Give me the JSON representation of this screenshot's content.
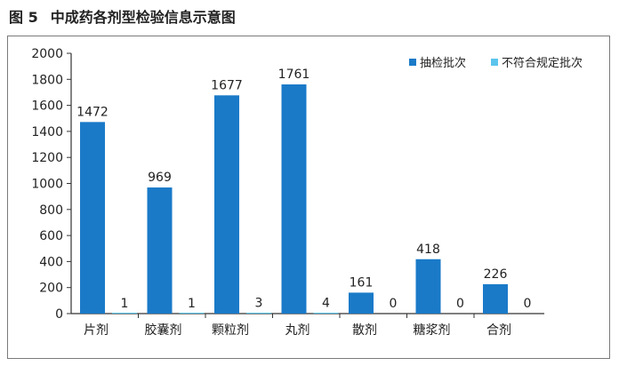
{
  "figure": {
    "number": "图 5",
    "title": "中成药各剂型检验信息示意图"
  },
  "chart_data": {
    "type": "bar",
    "categories": [
      "片剂",
      "胶囊剂",
      "颗粒剂",
      "丸剂",
      "散剂",
      "糖浆剂",
      "合剂"
    ],
    "series": [
      {
        "name": "抽检批次",
        "values": [
          1472,
          969,
          1677,
          1761,
          161,
          418,
          226
        ],
        "color": "#1a7ac8"
      },
      {
        "name": "不符合规定批次",
        "values": [
          1,
          1,
          3,
          4,
          0,
          0,
          0
        ],
        "color": "#5bc4ec"
      }
    ],
    "ylim": [
      0,
      2000
    ],
    "yticks": [
      "0",
      "200",
      "400",
      "600",
      "800",
      "1000",
      "1200",
      "1400",
      "1600",
      "1800",
      "2000"
    ],
    "legend_position": "top-right",
    "grid": false
  }
}
